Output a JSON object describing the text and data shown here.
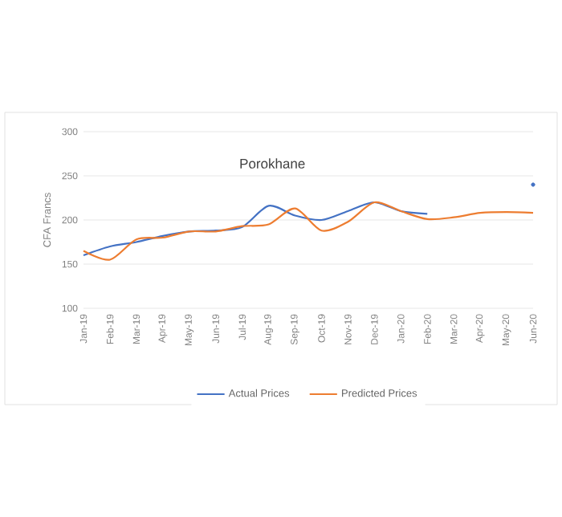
{
  "chart_data": {
    "type": "line",
    "title": "Porokhane",
    "ylabel": "CFA Francs",
    "categories": [
      "Jan-19",
      "Feb-19",
      "Mar-19",
      "Apr-19",
      "May-19",
      "Jun-19",
      "Jul-19",
      "Aug-19",
      "Sep-19",
      "Oct-19",
      "Nov-19",
      "Dec-19",
      "Jan-20",
      "Feb-20",
      "Mar-20",
      "Apr-20",
      "May-20",
      "Jun-20"
    ],
    "series": [
      {
        "name": "Actual Prices",
        "color": "#4472c4",
        "values": [
          160,
          170,
          175,
          182,
          187,
          188,
          192,
          216,
          205,
          200,
          210,
          220,
          210,
          207,
          null,
          null,
          null,
          240
        ]
      },
      {
        "name": "Predicted Prices",
        "color": "#ed7d31",
        "values": [
          165,
          155,
          178,
          180,
          187,
          187,
          193,
          195,
          213,
          188,
          198,
          220,
          210,
          201,
          203,
          208,
          209,
          208
        ]
      }
    ],
    "ylim": [
      100,
      300
    ],
    "yticks": [
      100,
      150,
      200,
      250,
      300
    ],
    "grid": "y",
    "legend": "bottom"
  }
}
